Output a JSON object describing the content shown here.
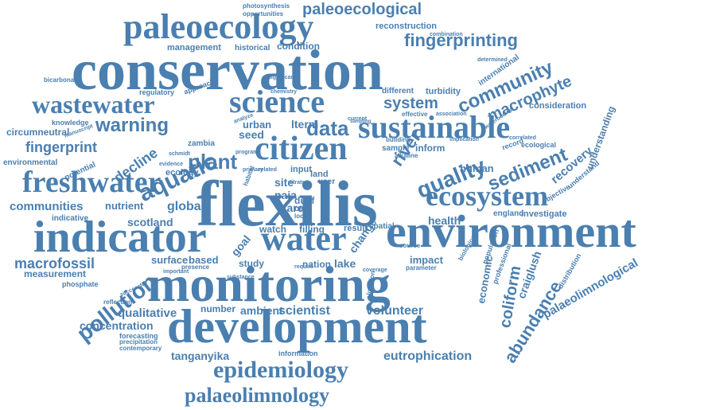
{
  "color": "#4a7fb0",
  "words": [
    "conservation",
    "monitoring",
    "development",
    "environment",
    "indicator",
    "flexilis",
    "paleoecology",
    "science",
    "citizen",
    "sustainable",
    "freshwater",
    "ecosystem",
    "wastewater",
    "water",
    "aquatic",
    "epidemiology",
    "palaeolimnology",
    "pollution",
    "quality",
    "sediment",
    "community",
    "plant",
    "data",
    "fingerprinting",
    "paleoecological",
    "warning",
    "fingerprint",
    "macrophyte",
    "system",
    "river",
    "communities",
    "abundance",
    "coliform",
    "macrofossil",
    "global",
    "health",
    "scotland",
    "lake",
    "impact",
    "scientist",
    "volunteer",
    "eutrophication",
    "tanganyika",
    "concentration",
    "qualitative",
    "measurement",
    "recovery",
    "understanding",
    "palaeolimnological",
    "craiglush",
    "economic",
    "human",
    "inform",
    "investigate",
    "england",
    "decline",
    "nutrient",
    "ambient",
    "number",
    "surface",
    "based",
    "goal",
    "study",
    "nation",
    "change",
    "reconstruction",
    "condition",
    "historical",
    "management",
    "circumneutral",
    "environmental",
    "knowledge",
    "manuscript",
    "regulatory",
    "approach",
    "bicarbonate",
    "phosphate",
    "reflection",
    "forecasting",
    "precipitation",
    "contemporary",
    "information",
    "rare",
    "site",
    "seed",
    "urban",
    "lterm",
    "zambia",
    "watch",
    "filling",
    "result",
    "spatial",
    "naja",
    "duef",
    "core",
    "loch",
    "input",
    "land",
    "user",
    "international",
    "turbidity",
    "consideration",
    "different",
    "effective",
    "association",
    "waterbodies",
    "sample",
    "alkaline",
    "record",
    "ecological",
    "correlated",
    "implication",
    "building",
    "photosynthesis",
    "opportunities",
    "combination",
    "determined",
    "ecology",
    "indicative",
    "potential",
    "objective",
    "understand",
    "distribution",
    "professional",
    "population",
    "biological",
    "parameter",
    "source",
    "coverage",
    "location",
    "successful",
    "important",
    "presence",
    "substance",
    "analyze",
    "require",
    "chemistry",
    "significant",
    "current",
    "sampling",
    "habitat",
    "schmidt",
    "evidence",
    "program",
    "primary",
    "related",
    "nitrate"
  ]
}
